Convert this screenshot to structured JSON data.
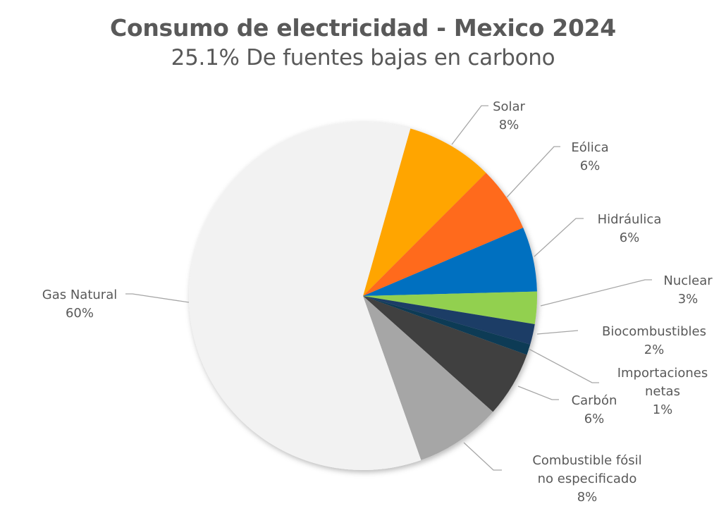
{
  "chart_data": {
    "type": "pie",
    "title": "Consumo de electricidad - Mexico 2024",
    "subtitle": "25.1% De fuentes bajas en carbono",
    "start_angle_deg": 15.8,
    "direction": "clockwise",
    "slices": [
      {
        "name": "Solar",
        "lines": [
          "Solar"
        ],
        "value": 8.1,
        "label": "8%",
        "color": "#FFA502"
      },
      {
        "name": "Eólica",
        "lines": [
          "Eólica"
        ],
        "value": 6.1,
        "label": "6%",
        "color": "#FF6A1F"
      },
      {
        "name": "Hidráulica",
        "lines": [
          "Hidráulica"
        ],
        "value": 6.0,
        "label": "6%",
        "color": "#0070C0"
      },
      {
        "name": "Nuclear",
        "lines": [
          "Nuclear"
        ],
        "value": 3.0,
        "label": "3%",
        "color": "#92D050"
      },
      {
        "name": "Biocombustibles",
        "lines": [
          "Biocombustibles"
        ],
        "value": 1.9,
        "label": "2%",
        "color": "#1F3C66"
      },
      {
        "name": "Importaciones netas",
        "lines": [
          "Importaciones",
          "netas"
        ],
        "value": 1.0,
        "label": "1%",
        "color": "#0E3B55"
      },
      {
        "name": "Carbón",
        "lines": [
          "Carbón"
        ],
        "value": 6.1,
        "label": "6%",
        "color": "#404040"
      },
      {
        "name": "Combustible fósil no especificado",
        "lines": [
          "Combustible fósil",
          "no especificado"
        ],
        "value": 8.0,
        "label": "8%",
        "color": "#A6A6A6"
      },
      {
        "name": "Gas Natural",
        "lines": [
          "Gas Natural"
        ],
        "value": 59.8,
        "label": "60%",
        "color": "#F2F2F2"
      }
    ],
    "leader_line_color": "#A6A6A6",
    "label_color": "#595959"
  }
}
